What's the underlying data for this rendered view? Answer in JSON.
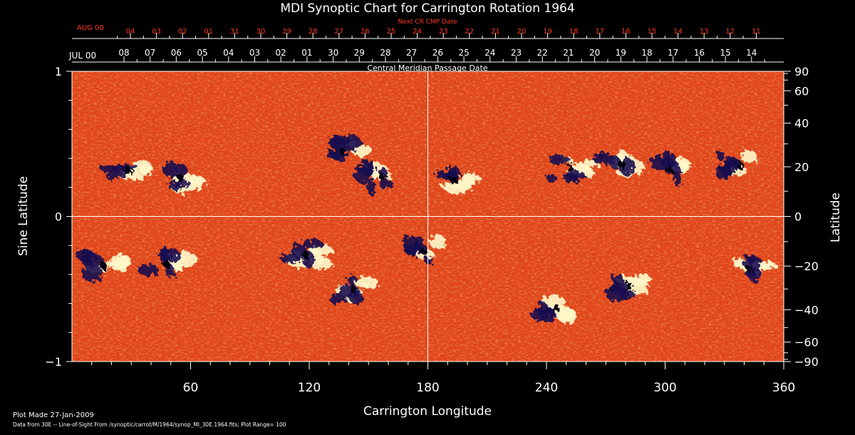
{
  "chart_data": {
    "type": "heatmap",
    "title": "MDI Synoptic Chart for Carrington Rotation 1964",
    "xlabel": "Carrington Longitude",
    "ylabel_left": "Sine Latitude",
    "ylabel_right": "Latitude",
    "xlim": [
      0,
      360
    ],
    "ylim": [
      -1,
      1
    ],
    "x_ticks": [
      60,
      120,
      180,
      240,
      300,
      360
    ],
    "left_ticks": [
      "1",
      "0",
      "−1"
    ],
    "right_ticks": [
      90,
      60,
      40,
      20,
      0,
      -20,
      -40,
      -60,
      -90
    ],
    "gridlines": {
      "longitude": 180,
      "sine_latitude": 0
    },
    "top_axis_red": {
      "label": "Next CR CMP Date",
      "month_label": "AUG 00",
      "dates": [
        "04",
        "03",
        "02",
        "01",
        "31",
        "30",
        "29",
        "28",
        "27",
        "26",
        "25",
        "24",
        "23",
        "22",
        "21",
        "20",
        "19",
        "18",
        "17",
        "16",
        "15",
        "14",
        "13",
        "12",
        "11"
      ]
    },
    "top_axis_white": {
      "label": "Central Meridian Passage Date",
      "month_label": "JUL 00",
      "dates": [
        "08",
        "07",
        "06",
        "05",
        "04",
        "03",
        "02",
        "01",
        "30",
        "29",
        "28",
        "27",
        "26",
        "25",
        "24",
        "23",
        "22",
        "21",
        "20",
        "19",
        "18",
        "17",
        "16",
        "15",
        "14"
      ]
    },
    "colors": {
      "background_field": "#e0461a",
      "positive_polarity": "#fff6c8",
      "negative_polarity": "#1a1050",
      "red_axis": "#ff3a1a"
    },
    "regions": [
      {
        "lon": 28,
        "slat": 0.32,
        "polarity": "mixed"
      },
      {
        "lon": 55,
        "slat": 0.26,
        "polarity": "mixed"
      },
      {
        "lon": 137,
        "slat": 0.45,
        "polarity": "negative"
      },
      {
        "lon": 157,
        "slat": 0.27,
        "polarity": "negative"
      },
      {
        "lon": 193,
        "slat": 0.25,
        "polarity": "mixed"
      },
      {
        "lon": 252,
        "slat": 0.33,
        "polarity": "mixed"
      },
      {
        "lon": 278,
        "slat": 0.36,
        "polarity": "mixed"
      },
      {
        "lon": 302,
        "slat": 0.32,
        "polarity": "negative"
      },
      {
        "lon": 338,
        "slat": 0.35,
        "polarity": "negative"
      },
      {
        "lon": 16,
        "slat": -0.34,
        "polarity": "mixed"
      },
      {
        "lon": 48,
        "slat": -0.33,
        "polarity": "mixed"
      },
      {
        "lon": 118,
        "slat": -0.26,
        "polarity": "mixed"
      },
      {
        "lon": 142,
        "slat": -0.5,
        "polarity": "mixed"
      },
      {
        "lon": 178,
        "slat": -0.24,
        "polarity": "negative"
      },
      {
        "lon": 245,
        "slat": -0.63,
        "polarity": "mixed"
      },
      {
        "lon": 282,
        "slat": -0.48,
        "polarity": "mixed"
      },
      {
        "lon": 342,
        "slat": -0.36,
        "polarity": "mixed"
      }
    ]
  },
  "footer": {
    "plot_made": "Plot Made 27-Jan-2009",
    "data_from": "Data from 30E -- Line-of-Sight From /synoptic/carrot/M/1964/synop_Ml_30E.1964.fits; Plot Range=  100"
  }
}
